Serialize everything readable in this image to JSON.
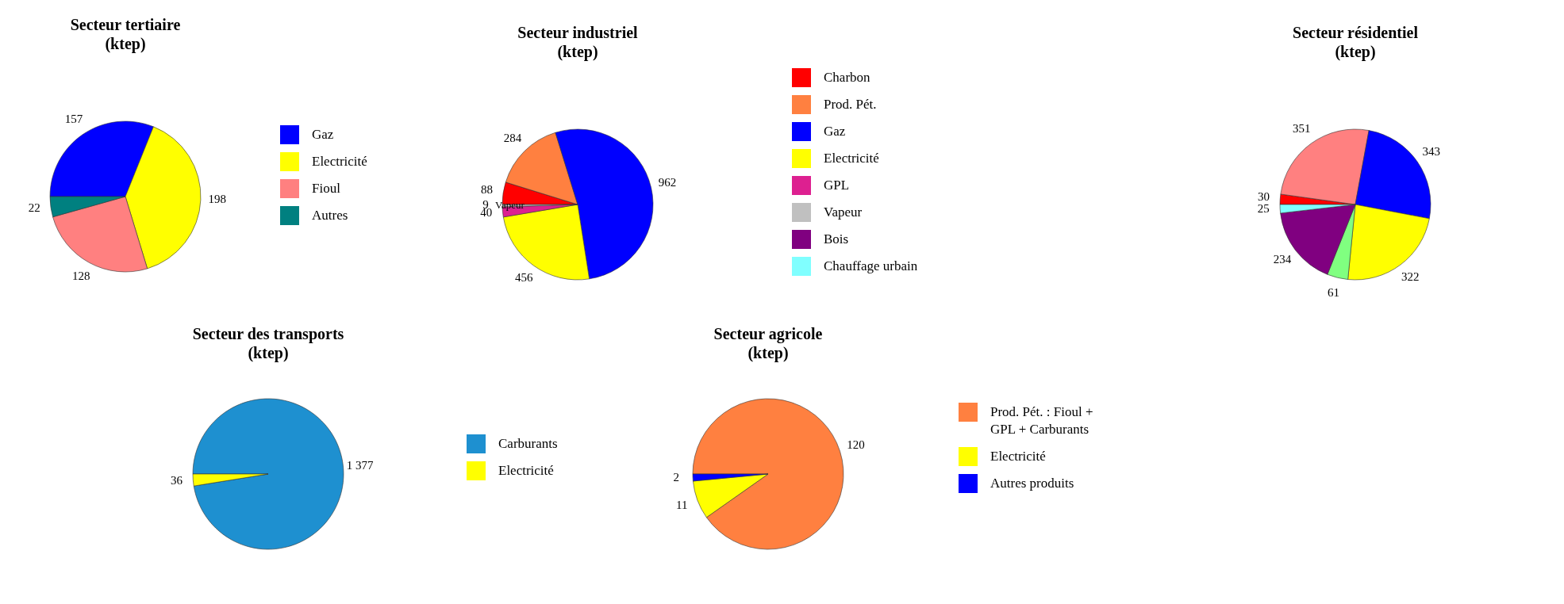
{
  "chart_data": [
    {
      "type": "pie",
      "title": "Secteur tertiaire\n(ktep)",
      "categories": [
        "Gaz",
        "Electricité",
        "Fioul",
        "Autres"
      ],
      "values": [
        157,
        198,
        128,
        22
      ],
      "colors": [
        "#0000ff",
        "#ffff00",
        "#ff8080",
        "#008080"
      ],
      "data_labels": true,
      "legend": "right"
    },
    {
      "type": "pie",
      "title": "Secteur industriel\n(ktep)",
      "categories": [
        "Charbon",
        "Prod. Pét.",
        "Gaz",
        "Electricité",
        "GPL",
        "Vapeur",
        "Bois",
        "Chauffage urbain"
      ],
      "values": [
        88,
        284,
        962,
        456,
        40,
        9,
        null,
        null
      ],
      "colors": [
        "#ff0000",
        "#ff8040",
        "#0000ff",
        "#ffff00",
        "#dd2090",
        "#c0c0c0",
        "#800080",
        "#80ffff"
      ],
      "data_labels": true,
      "legend": "right",
      "annotations": [
        {
          "text": "Vapeur",
          "x": "Vapeur"
        }
      ]
    },
    {
      "type": "pie",
      "title": "Secteur résidentiel\n(ktep)",
      "categories": [
        null,
        null,
        null,
        null,
        null,
        null,
        null
      ],
      "values": [
        30,
        351,
        343,
        322,
        61,
        234,
        25
      ],
      "colors": [
        "#ff0000",
        "#ff8080",
        "#0000ff",
        "#ffff00",
        "#80ff80",
        "#800080",
        "#80ffff"
      ],
      "data_labels": true
    },
    {
      "type": "pie",
      "title": "Secteur des transports\n(ktep)",
      "categories": [
        "Carburants",
        "Electricité"
      ],
      "values": [
        1377,
        36
      ],
      "colors": [
        "#1e90d0",
        "#ffff00"
      ],
      "value_labels": [
        "1 377",
        "36"
      ],
      "legend": "right"
    },
    {
      "type": "pie",
      "title": "Secteur agricole\n(ktep)",
      "categories": [
        "Prod. Pét. : Fioul +\nGPL + Carburants",
        "Electricité",
        "Autres produits"
      ],
      "values": [
        120,
        11,
        2
      ],
      "colors": [
        "#ff8040",
        "#ffff00",
        "#0000ff"
      ],
      "data_labels": true,
      "legend": "right"
    }
  ]
}
